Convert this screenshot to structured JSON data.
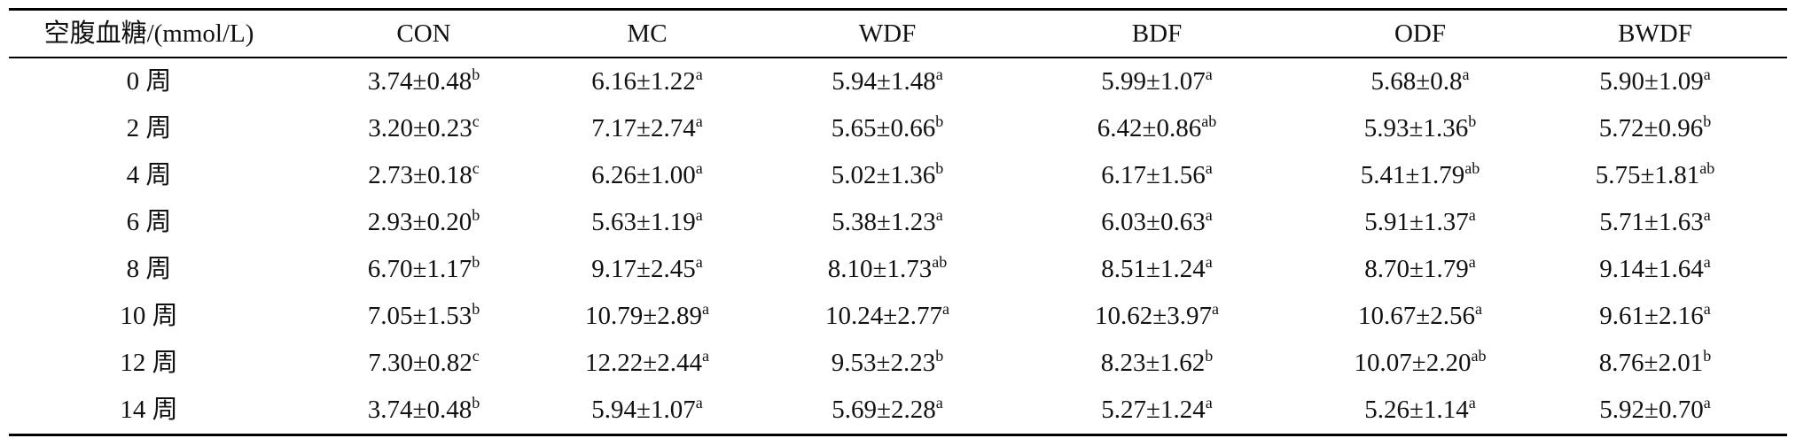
{
  "table": {
    "header": [
      "空腹血糖/(mmol/L)",
      "CON",
      "MC",
      "WDF",
      "BDF",
      "ODF",
      "BWDF"
    ],
    "rows": [
      {
        "label": "0 周",
        "cells": [
          {
            "value": "3.74±0.48",
            "sup": "b"
          },
          {
            "value": "6.16±1.22",
            "sup": "a"
          },
          {
            "value": "5.94±1.48",
            "sup": "a"
          },
          {
            "value": "5.99±1.07",
            "sup": "a"
          },
          {
            "value": "5.68±0.8",
            "sup": "a"
          },
          {
            "value": "5.90±1.09",
            "sup": "a"
          }
        ]
      },
      {
        "label": "2 周",
        "cells": [
          {
            "value": "3.20±0.23",
            "sup": "c"
          },
          {
            "value": "7.17±2.74",
            "sup": "a"
          },
          {
            "value": "5.65±0.66",
            "sup": "b"
          },
          {
            "value": "6.42±0.86",
            "sup": "ab"
          },
          {
            "value": "5.93±1.36",
            "sup": "b"
          },
          {
            "value": "5.72±0.96",
            "sup": "b"
          }
        ]
      },
      {
        "label": "4 周",
        "cells": [
          {
            "value": "2.73±0.18",
            "sup": "c"
          },
          {
            "value": "6.26±1.00",
            "sup": "a"
          },
          {
            "value": "5.02±1.36",
            "sup": "b"
          },
          {
            "value": "6.17±1.56",
            "sup": "a"
          },
          {
            "value": "5.41±1.79",
            "sup": "ab"
          },
          {
            "value": "5.75±1.81",
            "sup": "ab"
          }
        ]
      },
      {
        "label": "6 周",
        "cells": [
          {
            "value": "2.93±0.20",
            "sup": "b"
          },
          {
            "value": "5.63±1.19",
            "sup": "a"
          },
          {
            "value": "5.38±1.23",
            "sup": "a"
          },
          {
            "value": "6.03±0.63",
            "sup": "a"
          },
          {
            "value": "5.91±1.37",
            "sup": "a"
          },
          {
            "value": "5.71±1.63",
            "sup": "a"
          }
        ]
      },
      {
        "label": "8 周",
        "cells": [
          {
            "value": "6.70±1.17",
            "sup": "b"
          },
          {
            "value": "9.17±2.45",
            "sup": "a"
          },
          {
            "value": "8.10±1.73",
            "sup": "ab"
          },
          {
            "value": "8.51±1.24",
            "sup": "a"
          },
          {
            "value": "8.70±1.79",
            "sup": "a"
          },
          {
            "value": "9.14±1.64",
            "sup": "a"
          }
        ]
      },
      {
        "label": "10 周",
        "cells": [
          {
            "value": "7.05±1.53",
            "sup": "b"
          },
          {
            "value": "10.79±2.89",
            "sup": "a"
          },
          {
            "value": "10.24±2.77",
            "sup": "a"
          },
          {
            "value": "10.62±3.97",
            "sup": "a"
          },
          {
            "value": "10.67±2.56",
            "sup": "a"
          },
          {
            "value": "9.61±2.16",
            "sup": "a"
          }
        ]
      },
      {
        "label": "12 周",
        "cells": [
          {
            "value": "7.30±0.82",
            "sup": "c"
          },
          {
            "value": "12.22±2.44",
            "sup": "a"
          },
          {
            "value": "9.53±2.23",
            "sup": "b"
          },
          {
            "value": "8.23±1.62",
            "sup": "b"
          },
          {
            "value": "10.07±2.20",
            "sup": "ab"
          },
          {
            "value": "8.76±2.01",
            "sup": "b"
          }
        ]
      },
      {
        "label": "14 周",
        "cells": [
          {
            "value": "3.74±0.48",
            "sup": "b"
          },
          {
            "value": "5.94±1.07",
            "sup": "a"
          },
          {
            "value": "5.69±2.28",
            "sup": "a"
          },
          {
            "value": "5.27±1.24",
            "sup": "a"
          },
          {
            "value": "5.26±1.14",
            "sup": "a"
          },
          {
            "value": "5.92±0.70",
            "sup": "a"
          }
        ]
      }
    ]
  }
}
